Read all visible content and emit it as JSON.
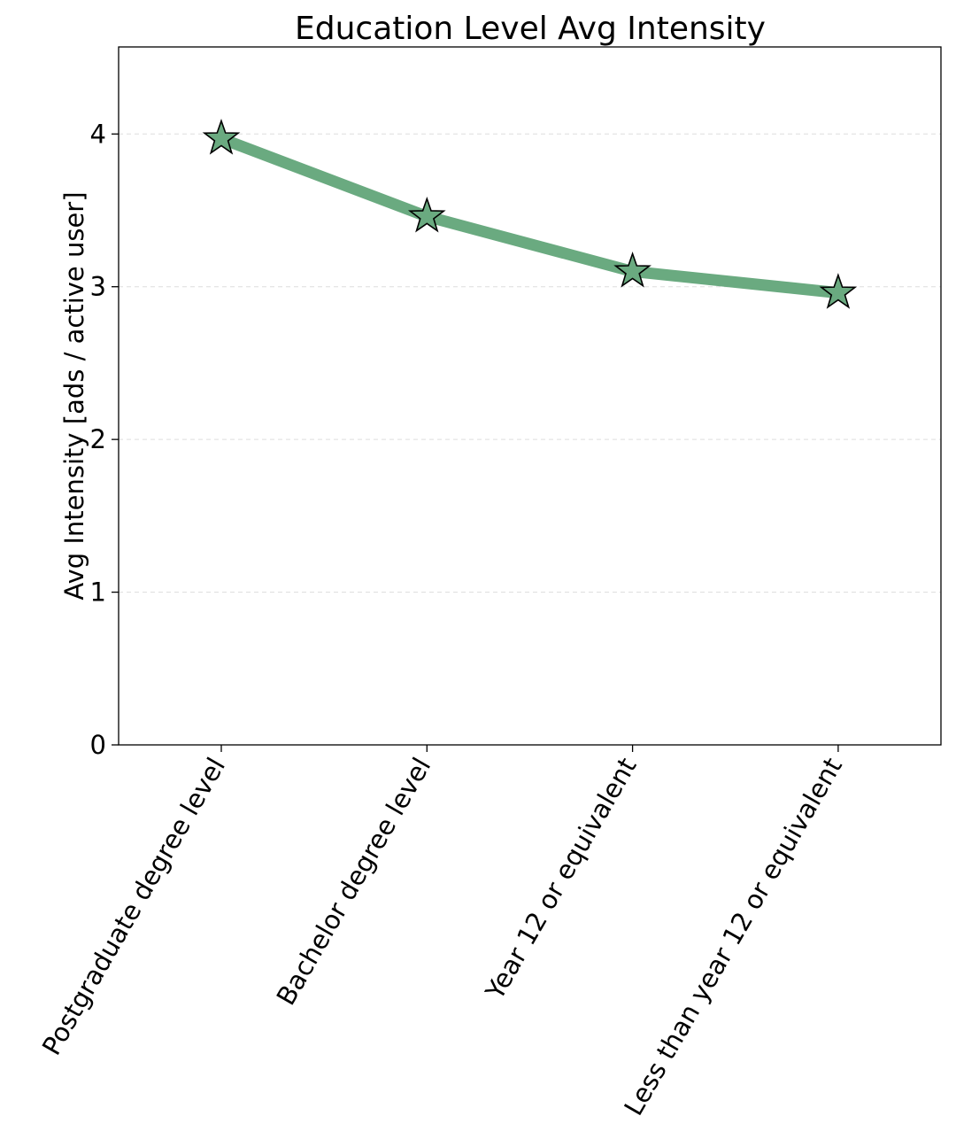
{
  "chart_data": {
    "type": "line",
    "title": "Education Level Avg Intensity",
    "xlabel": "",
    "ylabel": "Avg Intensity [ads / active user]",
    "categories": [
      "Postgraduate degree level",
      "Bachelor degree level",
      "Year 12 or equivalent",
      "Less than year 12 or equivalent"
    ],
    "series": [
      {
        "values": [
          3.97,
          3.46,
          3.1,
          2.96
        ]
      }
    ],
    "ylim": [
      0,
      4.57
    ],
    "yticks": [
      0,
      1,
      2,
      3,
      4
    ],
    "ytick_labels": [
      "0",
      "1",
      "2",
      "3",
      "4"
    ],
    "grid": "y-dashed",
    "marker": "star",
    "line_color": "#6aaa80",
    "marker_color": "#6aaa80",
    "marker_edge_color": "#000000"
  }
}
